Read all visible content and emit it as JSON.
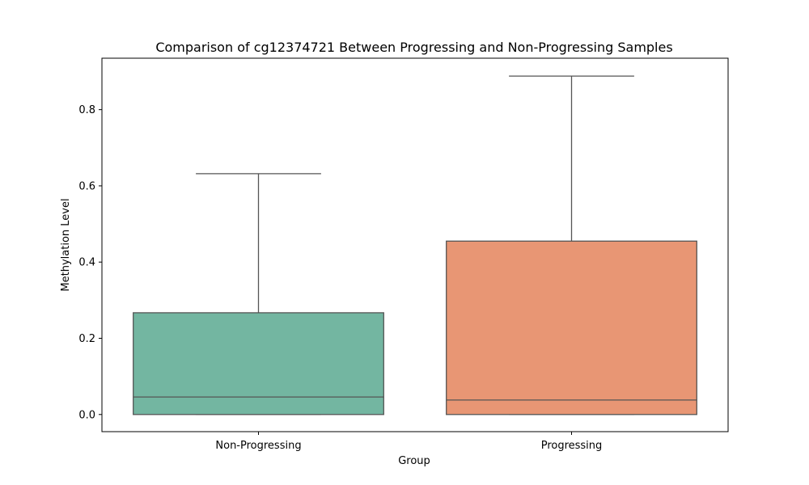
{
  "chart_data": {
    "type": "box",
    "title": "Comparison of cg12374721 Between Progressing and Non-Progressing Samples",
    "xlabel": "Group",
    "ylabel": "Methylation Level",
    "ylim": [
      -0.045,
      0.935
    ],
    "yticks": [
      0.0,
      0.2,
      0.4,
      0.6,
      0.8
    ],
    "ytick_labels": [
      "0.0",
      "0.2",
      "0.4",
      "0.6",
      "0.8"
    ],
    "grid": false,
    "groups": [
      {
        "name": "Non-Progressing",
        "color": "#73b6a1",
        "min": 0.0,
        "q1": 0.0,
        "median": 0.046,
        "q3": 0.267,
        "max": 0.632
      },
      {
        "name": "Progressing",
        "color": "#e89674",
        "min": 0.0,
        "q1": 0.0,
        "median": 0.038,
        "q3": 0.455,
        "max": 0.888
      }
    ]
  }
}
